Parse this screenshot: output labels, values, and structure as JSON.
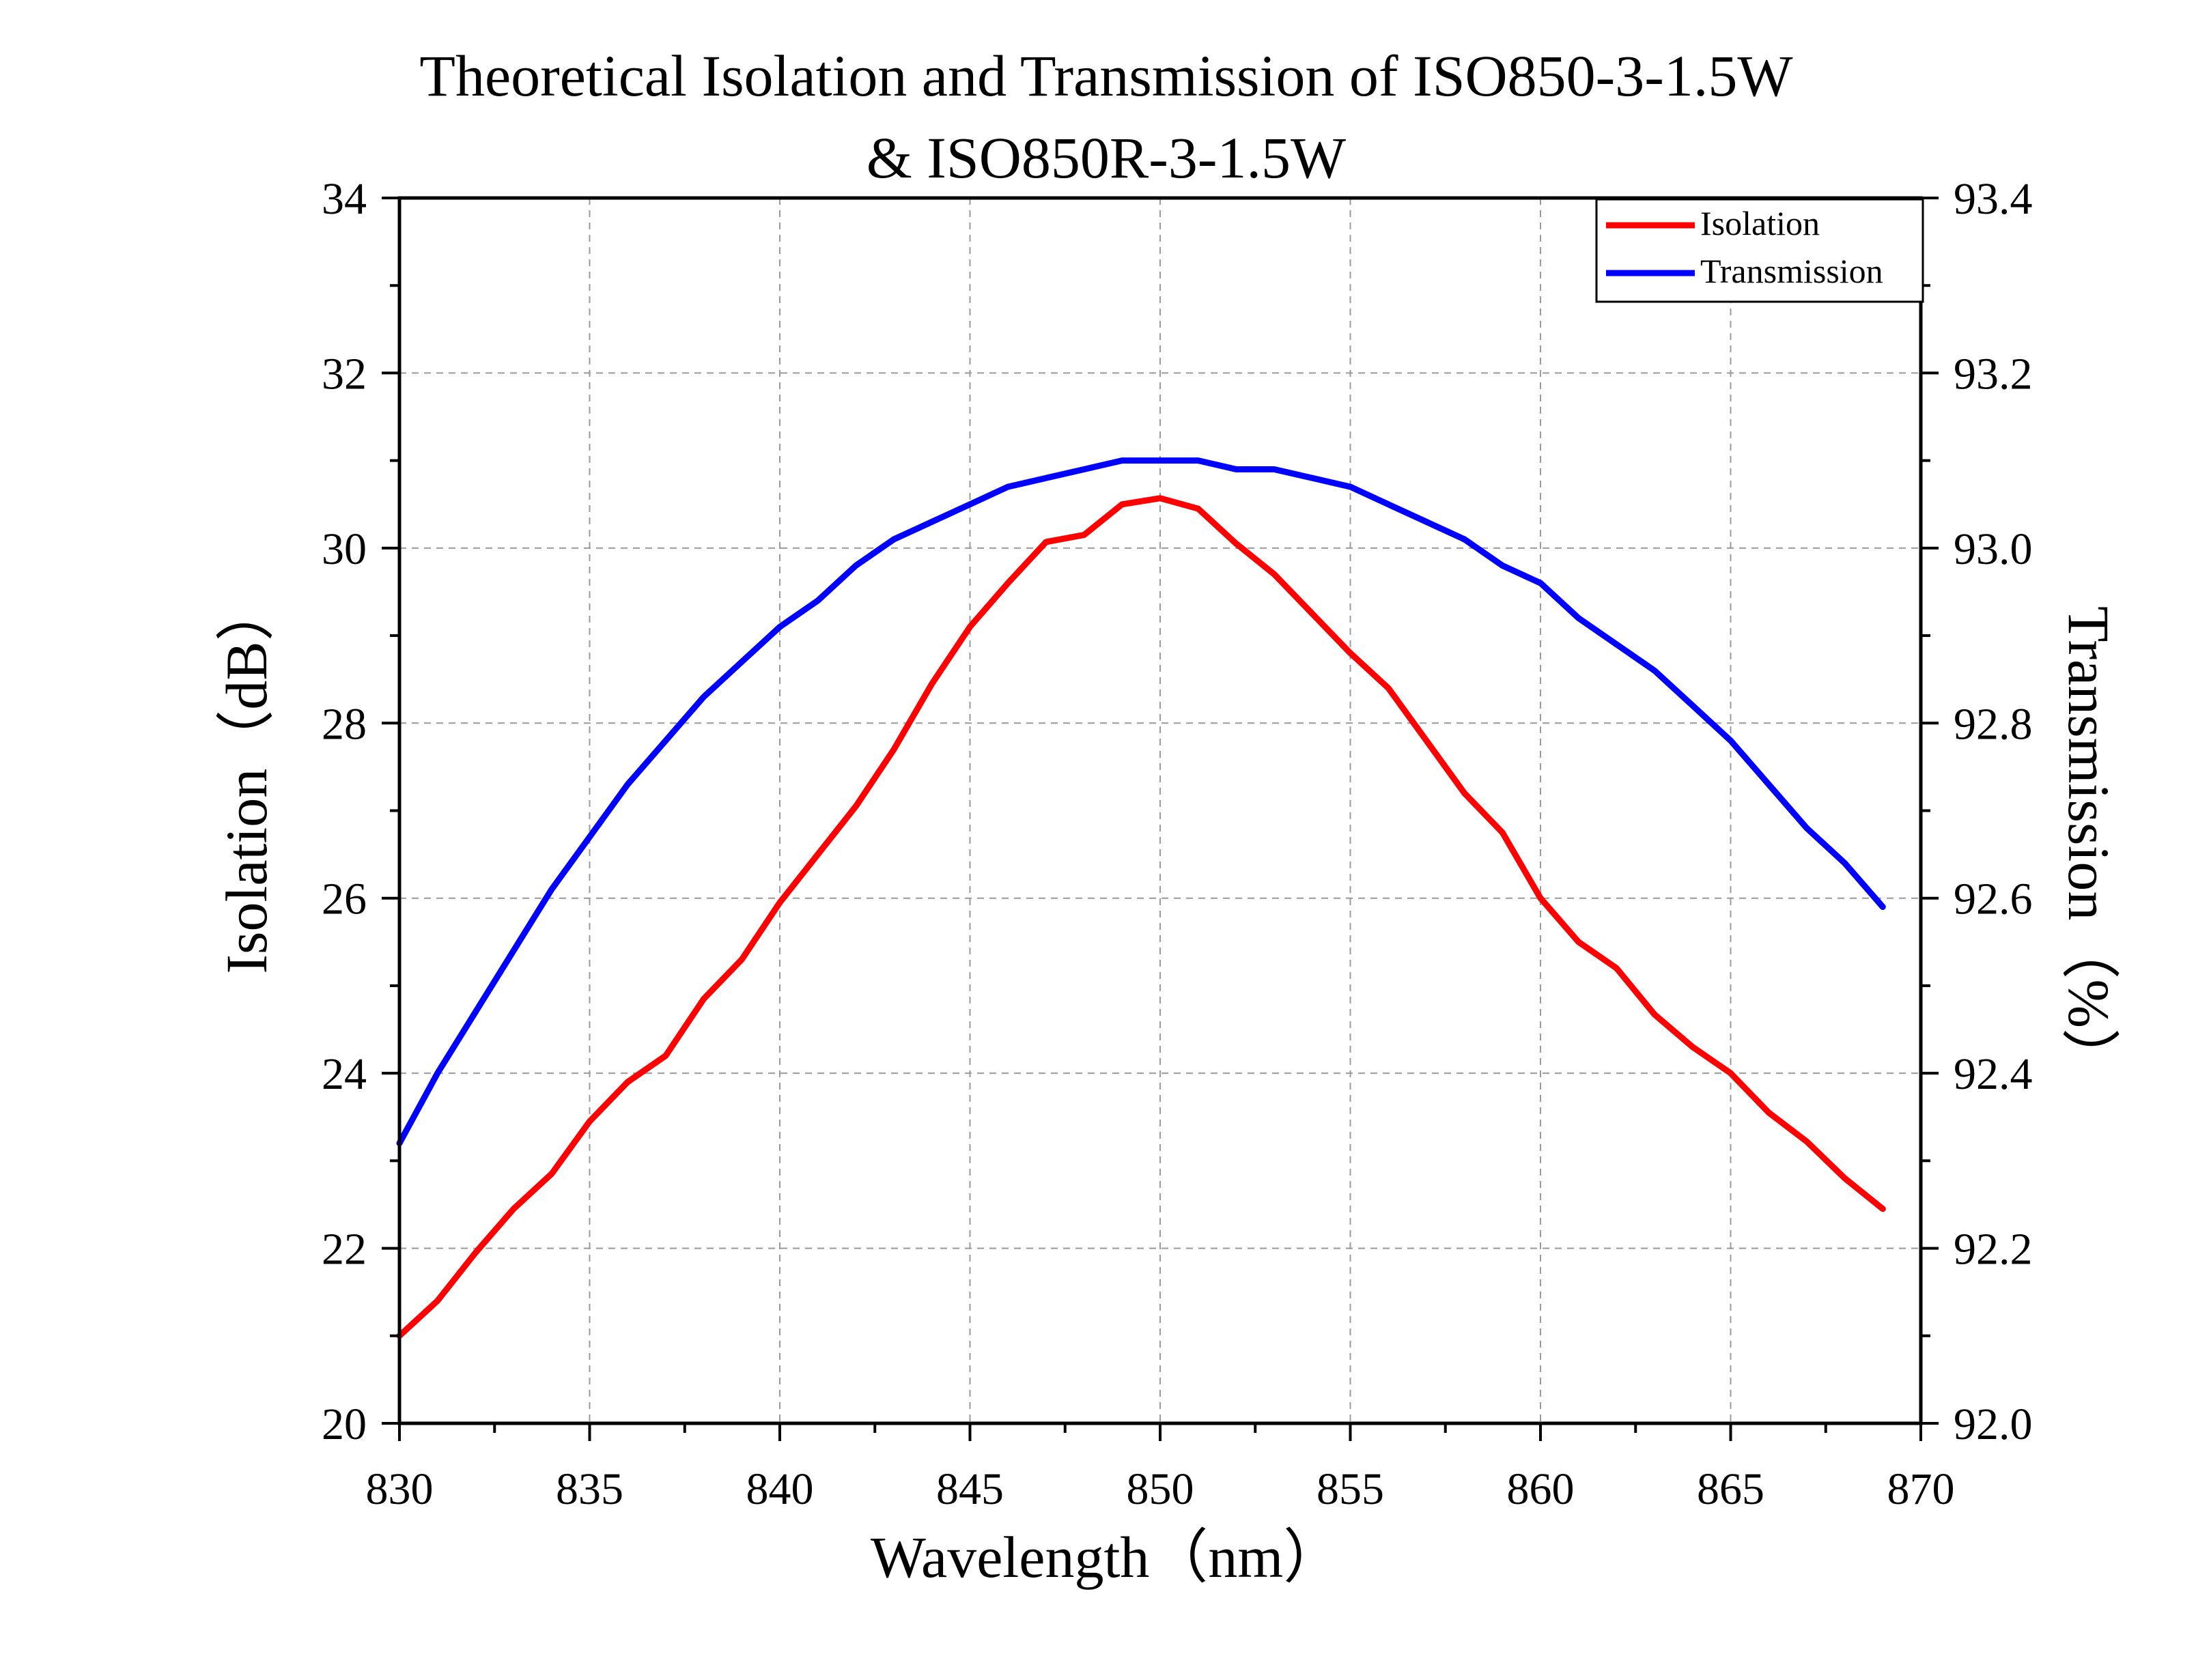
{
  "chart_data": {
    "type": "line",
    "title": "Theoretical Isolation and Transmission of ISO850-3-1.5W",
    "subtitle": "& ISO850R-3-1.5W",
    "xlabel": "Wavelength（nm）",
    "ylabel_left": "Isolation（dB）",
    "ylabel_right": "Transmission（%）",
    "xlim": [
      830,
      870
    ],
    "ylim_left": [
      20,
      34
    ],
    "ylim_right": [
      92.0,
      93.4
    ],
    "x_ticks": [
      "830",
      "835",
      "840",
      "845",
      "850",
      "855",
      "860",
      "865",
      "870"
    ],
    "y_ticks_left": [
      "20",
      "22",
      "24",
      "26",
      "28",
      "30",
      "32",
      "34"
    ],
    "y_ticks_right": [
      "92.0",
      "92.2",
      "92.4",
      "92.6",
      "92.8",
      "93.0",
      "93.2",
      "93.4"
    ],
    "grid": true,
    "legend_position": "top-right",
    "x": [
      830,
      831,
      832,
      833,
      834,
      835,
      836,
      837,
      838,
      839,
      840,
      841,
      842,
      843,
      844,
      845,
      846,
      847,
      848,
      849,
      850,
      851,
      852,
      853,
      854,
      855,
      856,
      857,
      858,
      859,
      860,
      861,
      862,
      863,
      864,
      865,
      866,
      867,
      868,
      869
    ],
    "series": [
      {
        "name": "Isolation",
        "color": "#ff0000",
        "axis": "left",
        "values": [
          21.0,
          21.4,
          21.95,
          22.45,
          22.85,
          23.45,
          23.9,
          24.2,
          24.85,
          25.3,
          25.95,
          26.5,
          27.05,
          27.7,
          28.45,
          29.1,
          29.6,
          30.07,
          30.15,
          30.5,
          30.57,
          30.45,
          30.05,
          29.7,
          29.25,
          28.8,
          28.4,
          27.8,
          27.2,
          26.75,
          26.0,
          25.5,
          25.2,
          24.67,
          24.3,
          24.0,
          23.55,
          23.22,
          22.8,
          22.45
        ]
      },
      {
        "name": "Transmission",
        "color": "#0000ff",
        "axis": "right",
        "values": [
          92.32,
          92.4,
          92.47,
          92.54,
          92.61,
          92.67,
          92.73,
          92.78,
          92.83,
          92.87,
          92.91,
          92.94,
          92.98,
          93.01,
          93.03,
          93.05,
          93.07,
          93.08,
          93.09,
          93.1,
          93.1,
          93.1,
          93.09,
          93.09,
          93.08,
          93.07,
          93.05,
          93.03,
          93.01,
          92.98,
          92.96,
          92.92,
          92.89,
          92.86,
          92.82,
          92.78,
          92.73,
          92.68,
          92.64,
          92.59
        ]
      }
    ]
  }
}
